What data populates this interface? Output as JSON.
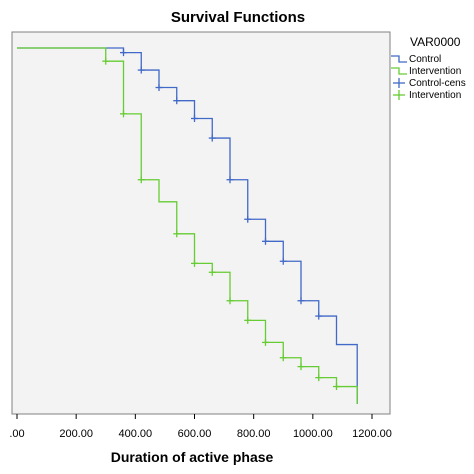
{
  "chart_data": {
    "type": "line",
    "title": "Survival Functions",
    "xlabel": "Duration of active phase",
    "ylabel": "",
    "xlim": [
      0,
      1200
    ],
    "ylim": [
      0,
      1
    ],
    "x_ticks": [
      ".00",
      "200.00",
      "400.00",
      "600.00",
      "800.00",
      "1000.00",
      "1200.00"
    ],
    "legend": {
      "title": "VAR0000",
      "entries": [
        "Control",
        "Intervention",
        "Control-cens",
        "Intervention"
      ]
    },
    "colors": {
      "control": "#4169c8",
      "intervention": "#66cc33",
      "plot_bg": "#f3f3f3"
    },
    "series": [
      {
        "name": "Control",
        "x": [
          0,
          300,
          360,
          420,
          480,
          540,
          600,
          660,
          720,
          780,
          840,
          900,
          960,
          1020,
          1080,
          1150
        ],
        "y": [
          1.0,
          1.0,
          0.987,
          0.938,
          0.889,
          0.852,
          0.802,
          0.747,
          0.63,
          0.519,
          0.457,
          0.401,
          0.29,
          0.247,
          0.167,
          0.0
        ]
      },
      {
        "name": "Intervention",
        "x": [
          0,
          300,
          360,
          420,
          480,
          540,
          600,
          660,
          720,
          780,
          840,
          900,
          960,
          1020,
          1080,
          1150
        ],
        "y": [
          1.0,
          0.963,
          0.815,
          0.63,
          0.568,
          0.478,
          0.395,
          0.37,
          0.29,
          0.235,
          0.173,
          0.13,
          0.105,
          0.074,
          0.049,
          0.0
        ]
      }
    ],
    "censored": [
      {
        "name": "Control-cens",
        "x": [
          360,
          420,
          480,
          540,
          600,
          660,
          720,
          780,
          840,
          900,
          960,
          1020
        ],
        "y": [
          0.987,
          0.938,
          0.889,
          0.852,
          0.802,
          0.747,
          0.63,
          0.519,
          0.457,
          0.401,
          0.29,
          0.247
        ]
      },
      {
        "name": "Intervention-cens",
        "x": [
          300,
          360,
          420,
          540,
          600,
          660,
          720,
          780,
          840,
          900,
          960,
          1020,
          1080
        ],
        "y": [
          0.963,
          0.815,
          0.63,
          0.478,
          0.395,
          0.37,
          0.29,
          0.235,
          0.173,
          0.13,
          0.105,
          0.074,
          0.049
        ]
      }
    ]
  }
}
